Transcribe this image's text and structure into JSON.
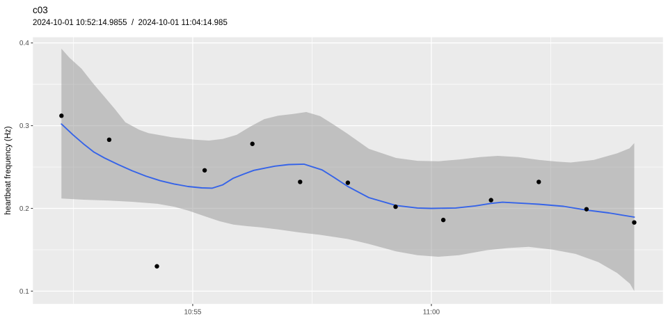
{
  "header": {
    "title": "c03",
    "subtitle": "2024-10-01 10:52:14.9855  /  2024-10-01 11:04:14.985"
  },
  "chart_data": {
    "type": "scatter",
    "title": "c03",
    "subtitle": "2024-10-01 10:52:14.9855  /  2024-10-01 11:04:14.985",
    "xlabel": "",
    "ylabel": "heartbeat frequency (Hz)",
    "x_unit": "minutes since 10:52:15",
    "grid": true,
    "legend": "none",
    "x_range": [
      -0.598,
      12.601
    ],
    "y_range": [
      0.0845,
      0.4069
    ],
    "x_ticks": [
      {
        "label": "10:55",
        "t": 2.75
      },
      {
        "label": "11:00",
        "t": 7.75
      }
    ],
    "x_minor": [
      0.25,
      5.25,
      10.25
    ],
    "y_ticks": [
      {
        "label": "0.1",
        "v": 0.1
      },
      {
        "label": "0.2",
        "v": 0.2
      },
      {
        "label": "0.3",
        "v": 0.3
      },
      {
        "label": "0.4",
        "v": 0.4
      }
    ],
    "y_minor": [
      0.15,
      0.25,
      0.35
    ],
    "points": [
      {
        "time": "10:52:15",
        "t": 0,
        "hz": 0.312
      },
      {
        "time": "10:53:15",
        "t": 1,
        "hz": 0.283
      },
      {
        "time": "10:54:15",
        "t": 2,
        "hz": 0.13
      },
      {
        "time": "10:55:15",
        "t": 3,
        "hz": 0.246
      },
      {
        "time": "10:56:15",
        "t": 4,
        "hz": 0.278
      },
      {
        "time": "10:57:15",
        "t": 5,
        "hz": 0.232
      },
      {
        "time": "10:58:15",
        "t": 6,
        "hz": 0.231
      },
      {
        "time": "10:59:15",
        "t": 7,
        "hz": 0.202
      },
      {
        "time": "11:00:15",
        "t": 8,
        "hz": 0.186
      },
      {
        "time": "11:01:15",
        "t": 9,
        "hz": 0.21
      },
      {
        "time": "11:02:15",
        "t": 10,
        "hz": 0.232
      },
      {
        "time": "11:03:15",
        "t": 11,
        "hz": 0.199
      },
      {
        "time": "11:04:15",
        "t": 12,
        "hz": 0.183
      }
    ],
    "smooth_line": [
      [
        0.0,
        0.302
      ],
      [
        0.24,
        0.289
      ],
      [
        0.46,
        0.278
      ],
      [
        0.68,
        0.268
      ],
      [
        0.9,
        0.261
      ],
      [
        1.19,
        0.253
      ],
      [
        1.48,
        0.2455
      ],
      [
        1.77,
        0.239
      ],
      [
        2.07,
        0.2335
      ],
      [
        2.36,
        0.2295
      ],
      [
        2.65,
        0.2265
      ],
      [
        2.94,
        0.2248
      ],
      [
        3.16,
        0.2245
      ],
      [
        3.38,
        0.2285
      ],
      [
        3.6,
        0.2365
      ],
      [
        3.82,
        0.2415
      ],
      [
        4.03,
        0.246
      ],
      [
        4.47,
        0.251
      ],
      [
        4.76,
        0.253
      ],
      [
        5.08,
        0.2535
      ],
      [
        5.46,
        0.2465
      ],
      [
        5.71,
        0.2375
      ],
      [
        6.0,
        0.2265
      ],
      [
        6.44,
        0.213
      ],
      [
        7.01,
        0.2035
      ],
      [
        7.46,
        0.2005
      ],
      [
        7.75,
        0.2
      ],
      [
        8.26,
        0.2005
      ],
      [
        8.67,
        0.203
      ],
      [
        9.0,
        0.206
      ],
      [
        9.24,
        0.2075
      ],
      [
        9.57,
        0.2065
      ],
      [
        10.0,
        0.205
      ],
      [
        10.52,
        0.2025
      ],
      [
        11.0,
        0.198
      ],
      [
        11.47,
        0.1945
      ],
      [
        12.0,
        0.1895
      ]
    ],
    "ribbon_upper": [
      [
        0.0,
        0.393
      ],
      [
        0.17,
        0.382
      ],
      [
        0.42,
        0.369
      ],
      [
        0.65,
        0.352
      ],
      [
        0.9,
        0.335
      ],
      [
        1.12,
        0.32
      ],
      [
        1.34,
        0.304
      ],
      [
        1.63,
        0.295
      ],
      [
        1.82,
        0.291
      ],
      [
        2.31,
        0.286
      ],
      [
        2.79,
        0.283
      ],
      [
        3.09,
        0.282
      ],
      [
        3.38,
        0.284
      ],
      [
        3.67,
        0.289
      ],
      [
        3.96,
        0.299
      ],
      [
        4.25,
        0.308
      ],
      [
        4.54,
        0.312
      ],
      [
        4.84,
        0.314
      ],
      [
        5.13,
        0.3165
      ],
      [
        5.42,
        0.3115
      ],
      [
        5.71,
        0.301
      ],
      [
        6.0,
        0.29
      ],
      [
        6.44,
        0.272
      ],
      [
        7.01,
        0.261
      ],
      [
        7.46,
        0.2575
      ],
      [
        7.9,
        0.257
      ],
      [
        8.33,
        0.259
      ],
      [
        8.77,
        0.262
      ],
      [
        9.14,
        0.2635
      ],
      [
        9.57,
        0.262
      ],
      [
        10.01,
        0.2585
      ],
      [
        10.38,
        0.2565
      ],
      [
        10.67,
        0.2555
      ],
      [
        11.15,
        0.2585
      ],
      [
        11.64,
        0.2665
      ],
      [
        11.9,
        0.2725
      ],
      [
        12.0,
        0.279
      ]
    ],
    "ribbon_lower": [
      [
        0.0,
        0.212
      ],
      [
        0.46,
        0.2105
      ],
      [
        1.0,
        0.2095
      ],
      [
        1.48,
        0.208
      ],
      [
        2.01,
        0.2055
      ],
      [
        2.36,
        0.202
      ],
      [
        2.65,
        0.1975
      ],
      [
        3.0,
        0.1905
      ],
      [
        3.31,
        0.1845
      ],
      [
        3.6,
        0.1805
      ],
      [
        3.89,
        0.1785
      ],
      [
        4.18,
        0.177
      ],
      [
        4.54,
        0.1745
      ],
      [
        4.98,
        0.171
      ],
      [
        5.42,
        0.168
      ],
      [
        6.0,
        0.163
      ],
      [
        6.44,
        0.157
      ],
      [
        7.01,
        0.148
      ],
      [
        7.46,
        0.1435
      ],
      [
        7.9,
        0.1415
      ],
      [
        8.33,
        0.1435
      ],
      [
        8.92,
        0.1495
      ],
      [
        9.35,
        0.152
      ],
      [
        9.79,
        0.1535
      ],
      [
        10.3,
        0.15
      ],
      [
        10.77,
        0.145
      ],
      [
        11.25,
        0.135
      ],
      [
        11.64,
        0.122
      ],
      [
        11.91,
        0.109
      ],
      [
        12.0,
        0.1
      ]
    ],
    "colors": {
      "panel_bg": "#EBEBEB",
      "grid": "#FFFFFF",
      "ribbon": "rgba(153,153,153,0.52)",
      "smooth_line": "#3563E8",
      "point": "#000000",
      "axis_text": "#4D4D4D",
      "tick_mark": "#333333"
    }
  }
}
